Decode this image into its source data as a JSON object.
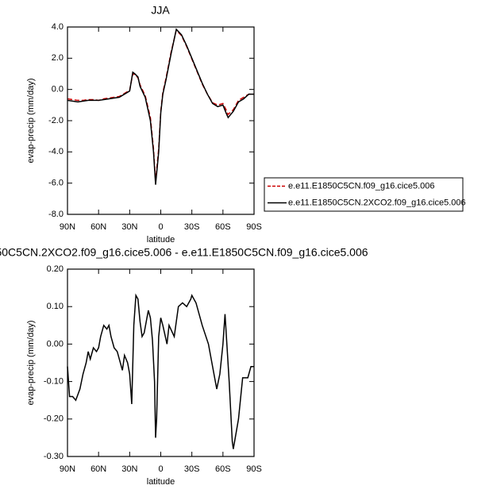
{
  "chart_data": [
    {
      "type": "line",
      "title": "JJA",
      "xlabel": "latitude",
      "ylabel": "evap-precip (mm/day)",
      "x": [
        90,
        85,
        80,
        75,
        70,
        65,
        60,
        55,
        50,
        45,
        40,
        35,
        30,
        27,
        25,
        22,
        20,
        15,
        10,
        7,
        5,
        2,
        0,
        -2,
        -5,
        -10,
        -15,
        -20,
        -25,
        -30,
        -35,
        -40,
        -45,
        -50,
        -55,
        -60,
        -63,
        -65,
        -70,
        -75,
        -80,
        -85,
        -90
      ],
      "series": [
        {
          "name": "e.e11.E1850C5CN.f09_g16.cice5.006",
          "color": "#cc0000",
          "linestyle": "dashed",
          "values": [
            -0.6,
            -0.65,
            -0.7,
            -0.7,
            -0.65,
            -0.65,
            -0.7,
            -0.6,
            -0.55,
            -0.5,
            -0.45,
            -0.25,
            -0.05,
            1.0,
            0.95,
            0.75,
            0.3,
            -0.4,
            -1.8,
            -3.8,
            -5.9,
            -3.8,
            -1.4,
            -0.2,
            0.7,
            2.4,
            3.8,
            3.45,
            2.75,
            1.95,
            1.15,
            0.35,
            -0.3,
            -0.85,
            -1.0,
            -0.9,
            -1.3,
            -1.6,
            -1.3,
            -0.7,
            -0.5,
            -0.3,
            -0.3
          ]
        },
        {
          "name": "e.e11.E1850C5CN.2XCO2.f09_g16.cice5.006",
          "color": "#000000",
          "linestyle": "solid",
          "values": [
            -0.7,
            -0.75,
            -0.8,
            -0.75,
            -0.7,
            -0.7,
            -0.7,
            -0.65,
            -0.6,
            -0.55,
            -0.5,
            -0.3,
            -0.1,
            1.1,
            1.0,
            0.8,
            0.2,
            -0.5,
            -2.0,
            -4.0,
            -6.1,
            -4.0,
            -1.5,
            -0.3,
            0.6,
            2.3,
            3.85,
            3.5,
            2.8,
            2.0,
            1.2,
            0.4,
            -0.3,
            -0.9,
            -1.1,
            -1.0,
            -1.5,
            -1.8,
            -1.4,
            -0.8,
            -0.6,
            -0.3,
            -0.3
          ]
        }
      ],
      "xlim": [
        90,
        -90
      ],
      "xticks": [
        {
          "value": 90,
          "label": "90N"
        },
        {
          "value": 60,
          "label": "60N"
        },
        {
          "value": 30,
          "label": "30N"
        },
        0,
        {
          "value": -30,
          "label": "30S"
        },
        {
          "value": -60,
          "label": "60S"
        },
        {
          "value": -90,
          "label": "90S"
        }
      ],
      "ylim": [
        -8,
        4
      ],
      "yticks": [
        {
          "value": 4,
          "label": "4.0"
        },
        {
          "value": 2,
          "label": "2.0"
        },
        {
          "value": 0,
          "label": "0.0"
        },
        {
          "value": -2,
          "label": "-2.0"
        },
        {
          "value": -4,
          "label": "-4.0"
        },
        {
          "value": -6,
          "label": "-6.0"
        },
        {
          "value": -8,
          "label": "-8.0"
        }
      ],
      "legend": "right"
    },
    {
      "type": "line",
      "title": "50C5CN.2XCO2.f09_g16.cice5.006 - e.e11.E1850C5CN.f09_g16.cice5.006",
      "xlabel": "latitude",
      "ylabel": "evap-precip (mm/day)",
      "x": [
        90,
        88,
        85,
        82,
        78,
        75,
        72,
        70,
        68,
        65,
        62,
        60,
        58,
        55,
        52,
        50,
        48,
        45,
        42,
        40,
        37,
        35,
        32,
        30,
        28,
        26,
        24,
        22,
        20,
        18,
        16,
        14,
        12,
        10,
        8,
        6,
        5,
        4,
        2,
        0,
        -2,
        -6,
        -8,
        -13,
        -17,
        -21,
        -25,
        -29,
        -30,
        -34,
        -40,
        -46,
        -50,
        -54,
        -57,
        -60,
        -62,
        -66,
        -69,
        -70,
        -75,
        -79,
        -84,
        -87,
        -90
      ],
      "values": [
        -0.06,
        -0.14,
        -0.14,
        -0.15,
        -0.12,
        -0.08,
        -0.05,
        -0.02,
        -0.04,
        -0.01,
        -0.02,
        -0.01,
        0.02,
        0.05,
        0.04,
        0.05,
        0.02,
        -0.01,
        -0.02,
        -0.04,
        -0.07,
        -0.03,
        -0.05,
        -0.08,
        -0.16,
        0.05,
        0.13,
        0.12,
        0.06,
        0.02,
        0.03,
        0.06,
        0.09,
        0.07,
        0.01,
        -0.1,
        -0.25,
        -0.2,
        0.02,
        0.07,
        0.05,
        0,
        0.05,
        0.02,
        0.1,
        0.11,
        0.1,
        0.12,
        0.13,
        0.11,
        0.05,
        0,
        -0.06,
        -0.12,
        -0.08,
        0,
        0.08,
        -0.1,
        -0.26,
        -0.28,
        -0.2,
        -0.09,
        -0.09,
        -0.06,
        -0.06
      ],
      "color": "#000000",
      "xlim": [
        90,
        -90
      ],
      "xticks": [
        {
          "value": 90,
          "label": "90N"
        },
        {
          "value": 60,
          "label": "60N"
        },
        {
          "value": 30,
          "label": "30N"
        },
        0,
        {
          "value": -30,
          "label": "30S"
        },
        {
          "value": -60,
          "label": "60S"
        },
        {
          "value": -90,
          "label": "90S"
        }
      ],
      "ylim": [
        -0.3,
        0.2
      ],
      "yticks": [
        {
          "value": 0.2,
          "label": "0.20"
        },
        {
          "value": 0.1,
          "label": "0.10"
        },
        {
          "value": 0,
          "label": "0.00"
        },
        {
          "value": -0.1,
          "label": "-0.10"
        },
        {
          "value": -0.2,
          "label": "-0.20"
        },
        {
          "value": -0.3,
          "label": "-0.30"
        }
      ]
    }
  ]
}
